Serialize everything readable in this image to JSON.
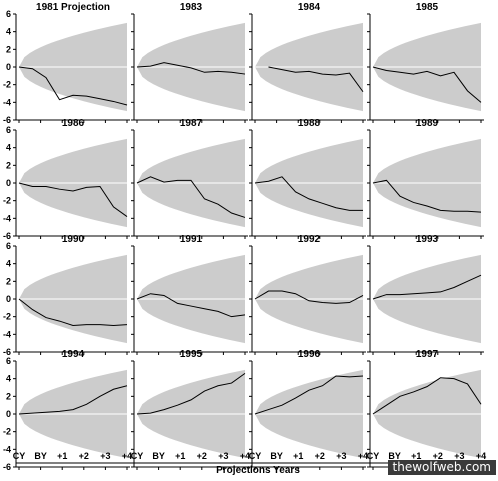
{
  "chart_data": {
    "type": "line",
    "layout": "small-multiples-4x4",
    "xlabel": "Projections Years",
    "x_ticks": [
      "CY",
      "BY",
      "+1",
      "+2",
      "+3",
      "+4"
    ],
    "y_ticks": [
      "6",
      "4",
      "2",
      "0",
      "-2",
      "-4",
      "-6"
    ],
    "ylim": [
      -6,
      6
    ],
    "band": {
      "color": "#cccccc",
      "description": "widening fan",
      "upper_at_end": 5.0,
      "lower_at_end": -5.0
    },
    "line_color": "#000000",
    "panels": [
      {
        "title": "1981 Projection",
        "x": [
          0,
          0.5,
          1,
          1.5,
          2,
          2.5,
          3,
          3.5,
          4
        ],
        "y": [
          0,
          -0.2,
          -1.2,
          -3.7,
          -3.2,
          -3.3,
          -3.6,
          -3.9,
          -4.3
        ]
      },
      {
        "title": "1983",
        "x": [
          0,
          0.5,
          1,
          1.5,
          2,
          2.5,
          3,
          3.5,
          4
        ],
        "y": [
          0,
          0.1,
          0.5,
          0.2,
          -0.1,
          -0.6,
          -0.5,
          -0.6,
          -0.8
        ]
      },
      {
        "title": "1984",
        "x": [
          0.5,
          1,
          1.5,
          2,
          2.5,
          3,
          3.5,
          4
        ],
        "y": [
          0,
          -0.3,
          -0.6,
          -0.5,
          -0.8,
          -0.9,
          -0.7,
          -2.8
        ]
      },
      {
        "title": "1985",
        "x": [
          0,
          0.5,
          1,
          1.5,
          2,
          2.5,
          3,
          3.5,
          4
        ],
        "y": [
          0,
          -0.4,
          -0.6,
          -0.8,
          -0.5,
          -1.0,
          -0.6,
          -2.7,
          -4.0
        ]
      },
      {
        "title": "1986",
        "x": [
          0,
          0.5,
          1,
          1.5,
          2,
          2.5,
          3,
          3.5,
          4
        ],
        "y": [
          0,
          -0.4,
          -0.4,
          -0.7,
          -0.9,
          -0.5,
          -0.4,
          -2.7,
          -3.8
        ]
      },
      {
        "title": "1987",
        "x": [
          0,
          0.5,
          1,
          1.5,
          2,
          2.5,
          3,
          3.5,
          4
        ],
        "y": [
          0,
          0.7,
          0.1,
          0.3,
          0.3,
          -1.8,
          -2.4,
          -3.4,
          -3.9
        ]
      },
      {
        "title": "1988",
        "x": [
          0,
          0.5,
          1,
          1.5,
          2,
          2.5,
          3,
          3.5,
          4
        ],
        "y": [
          0,
          0.2,
          0.7,
          -1.0,
          -1.8,
          -2.3,
          -2.8,
          -3.1,
          -3.1
        ]
      },
      {
        "title": "1989",
        "x": [
          0,
          0.5,
          1,
          1.5,
          2,
          2.5,
          3,
          3.5,
          4
        ],
        "y": [
          0,
          0.3,
          -1.5,
          -2.2,
          -2.6,
          -3.1,
          -3.2,
          -3.2,
          -3.3
        ]
      },
      {
        "title": "1990",
        "x": [
          0,
          0.5,
          1,
          1.5,
          2,
          2.5,
          3,
          3.5,
          4
        ],
        "y": [
          0,
          -1.2,
          -2.1,
          -2.5,
          -3.0,
          -2.9,
          -2.9,
          -3.0,
          -2.9
        ]
      },
      {
        "title": "1991",
        "x": [
          0,
          0.5,
          1,
          1.5,
          2,
          2.5,
          3,
          3.5,
          4
        ],
        "y": [
          0,
          0.6,
          0.4,
          -0.5,
          -0.8,
          -1.1,
          -1.4,
          -2.0,
          -1.8
        ]
      },
      {
        "title": "1992",
        "x": [
          0,
          0.5,
          1,
          1.5,
          2,
          2.5,
          3,
          3.5,
          4
        ],
        "y": [
          0,
          0.9,
          0.9,
          0.6,
          -0.2,
          -0.4,
          -0.5,
          -0.4,
          0.4
        ]
      },
      {
        "title": "1993",
        "x": [
          0,
          0.5,
          1,
          1.5,
          2,
          2.5,
          3,
          3.5,
          4
        ],
        "y": [
          0,
          0.5,
          0.5,
          0.6,
          0.7,
          0.8,
          1.3,
          2.0,
          2.7
        ]
      },
      {
        "title": "1994",
        "x": [
          0,
          0.5,
          1,
          1.5,
          2,
          2.5,
          3,
          3.5,
          4
        ],
        "y": [
          0,
          0.1,
          0.2,
          0.3,
          0.5,
          1.1,
          2.0,
          2.8,
          3.2
        ]
      },
      {
        "title": "1995",
        "x": [
          0,
          0.5,
          1,
          1.5,
          2,
          2.5,
          3,
          3.5,
          4
        ],
        "y": [
          0,
          0.1,
          0.5,
          1.0,
          1.6,
          2.6,
          3.2,
          3.5,
          4.6
        ]
      },
      {
        "title": "1996",
        "x": [
          0,
          0.5,
          1,
          1.5,
          2,
          2.5,
          3,
          3.5,
          4
        ],
        "y": [
          0,
          0.5,
          1.0,
          1.8,
          2.7,
          3.2,
          4.3,
          4.2,
          4.3
        ]
      },
      {
        "title": "1997",
        "x": [
          0,
          0.5,
          1,
          1.5,
          2,
          2.5,
          3,
          3.5,
          4
        ],
        "y": [
          0,
          1.0,
          2.0,
          2.5,
          3.1,
          4.1,
          4.0,
          3.4,
          1.1
        ]
      }
    ]
  },
  "watermark": "thewolfweb.com"
}
